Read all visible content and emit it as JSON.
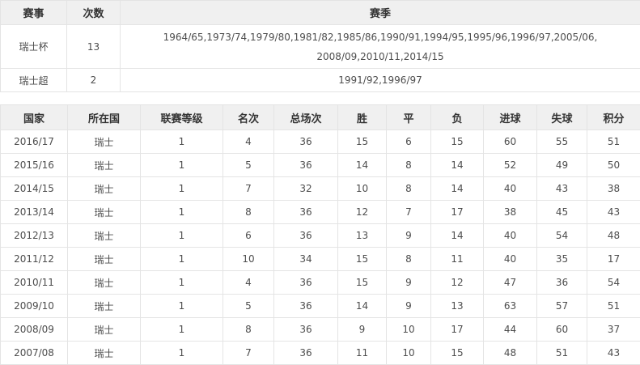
{
  "colors": {
    "header_background": "#f0f0f0",
    "border": "#e4e4e4",
    "header_text": "#333333",
    "body_text": "#4d4d4d"
  },
  "table1": {
    "headers": [
      "赛事",
      "次数",
      "赛季"
    ],
    "rows": [
      {
        "competition": "瑞士杯",
        "count": "13",
        "seasons": [
          "1964/65",
          "1973/74",
          "1979/80",
          "1981/82",
          "1985/86",
          "1990/91",
          "1994/95",
          "1995/96",
          "1996/97",
          "2005/06",
          "2008/09",
          "2010/11",
          "2014/15"
        ]
      },
      {
        "competition": "瑞士超",
        "count": "2",
        "seasons": [
          "1991/92",
          "1996/97"
        ]
      }
    ]
  },
  "table2": {
    "headers": [
      "国家",
      "所在国",
      "联赛等级",
      "名次",
      "总场次",
      "胜",
      "平",
      "负",
      "进球",
      "失球",
      "积分"
    ],
    "rows": [
      [
        "2016/17",
        "瑞士",
        "1",
        "4",
        "36",
        "15",
        "6",
        "15",
        "60",
        "55",
        "51"
      ],
      [
        "2015/16",
        "瑞士",
        "1",
        "5",
        "36",
        "14",
        "8",
        "14",
        "52",
        "49",
        "50"
      ],
      [
        "2014/15",
        "瑞士",
        "1",
        "7",
        "32",
        "10",
        "8",
        "14",
        "40",
        "43",
        "38"
      ],
      [
        "2013/14",
        "瑞士",
        "1",
        "8",
        "36",
        "12",
        "7",
        "17",
        "38",
        "45",
        "43"
      ],
      [
        "2012/13",
        "瑞士",
        "1",
        "6",
        "36",
        "13",
        "9",
        "14",
        "40",
        "54",
        "48"
      ],
      [
        "2011/12",
        "瑞士",
        "1",
        "10",
        "34",
        "15",
        "8",
        "11",
        "40",
        "35",
        "17"
      ],
      [
        "2010/11",
        "瑞士",
        "1",
        "4",
        "36",
        "15",
        "9",
        "12",
        "47",
        "36",
        "54"
      ],
      [
        "2009/10",
        "瑞士",
        "1",
        "5",
        "36",
        "14",
        "9",
        "13",
        "63",
        "57",
        "51"
      ],
      [
        "2008/09",
        "瑞士",
        "1",
        "8",
        "36",
        "9",
        "10",
        "17",
        "44",
        "60",
        "37"
      ],
      [
        "2007/08",
        "瑞士",
        "1",
        "7",
        "36",
        "11",
        "10",
        "15",
        "48",
        "51",
        "43"
      ]
    ]
  }
}
